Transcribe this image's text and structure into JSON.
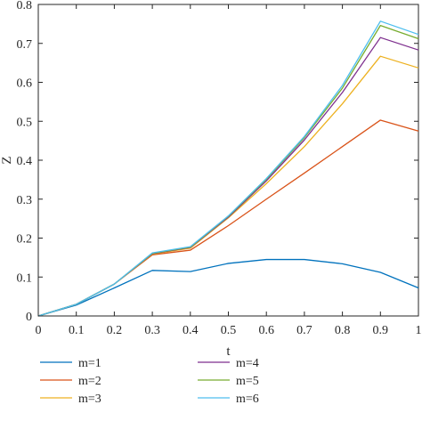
{
  "chart_data": {
    "type": "line",
    "title": "",
    "xlabel": "t",
    "ylabel": "Z",
    "xlim": [
      0,
      1
    ],
    "ylim": [
      0,
      0.8
    ],
    "grid": false,
    "xticks": [
      "0",
      "0.1",
      "0.2",
      "0.3",
      "0.4",
      "0.5",
      "0.6",
      "0.7",
      "0.8",
      "0.9",
      "1"
    ],
    "yticks": [
      "0",
      "0.1",
      "0.2",
      "0.3",
      "0.4",
      "0.5",
      "0.6",
      "0.7",
      "0.8"
    ],
    "xtick_values": [
      0,
      0.1,
      0.2,
      0.3,
      0.4,
      0.5,
      0.6,
      0.7,
      0.8,
      0.9,
      1
    ],
    "ytick_values": [
      0,
      0.1,
      0.2,
      0.3,
      0.4,
      0.5,
      0.6,
      0.7,
      0.8
    ],
    "x": [
      0,
      0.1,
      0.2,
      0.3,
      0.4,
      0.5,
      0.6,
      0.7,
      0.8,
      0.9,
      1.0
    ],
    "legend_position": "bottom",
    "series": [
      {
        "name": "m=1",
        "color": "#0072BD",
        "values": [
          0,
          0.028,
          0.072,
          0.117,
          0.114,
          0.135,
          0.145,
          0.145,
          0.134,
          0.112,
          0.072
        ]
      },
      {
        "name": "m=2",
        "color": "#D95319",
        "values": [
          0,
          0.03,
          0.082,
          0.157,
          0.169,
          0.232,
          0.3,
          0.367,
          0.435,
          0.503,
          0.475
        ]
      },
      {
        "name": "m=3",
        "color": "#EDB120",
        "values": [
          0,
          0.03,
          0.082,
          0.159,
          0.174,
          0.252,
          0.34,
          0.435,
          0.545,
          0.667,
          0.637
        ]
      },
      {
        "name": "m=4",
        "color": "#7E2F8E",
        "values": [
          0,
          0.03,
          0.082,
          0.16,
          0.176,
          0.254,
          0.347,
          0.452,
          0.574,
          0.715,
          0.683
        ]
      },
      {
        "name": "m=5",
        "color": "#77AC30",
        "values": [
          0,
          0.03,
          0.082,
          0.161,
          0.177,
          0.256,
          0.351,
          0.458,
          0.585,
          0.746,
          0.712
        ]
      },
      {
        "name": "m=6",
        "color": "#4DBEEE",
        "values": [
          0,
          0.03,
          0.082,
          0.162,
          0.178,
          0.257,
          0.353,
          0.461,
          0.592,
          0.757,
          0.723
        ]
      }
    ]
  }
}
